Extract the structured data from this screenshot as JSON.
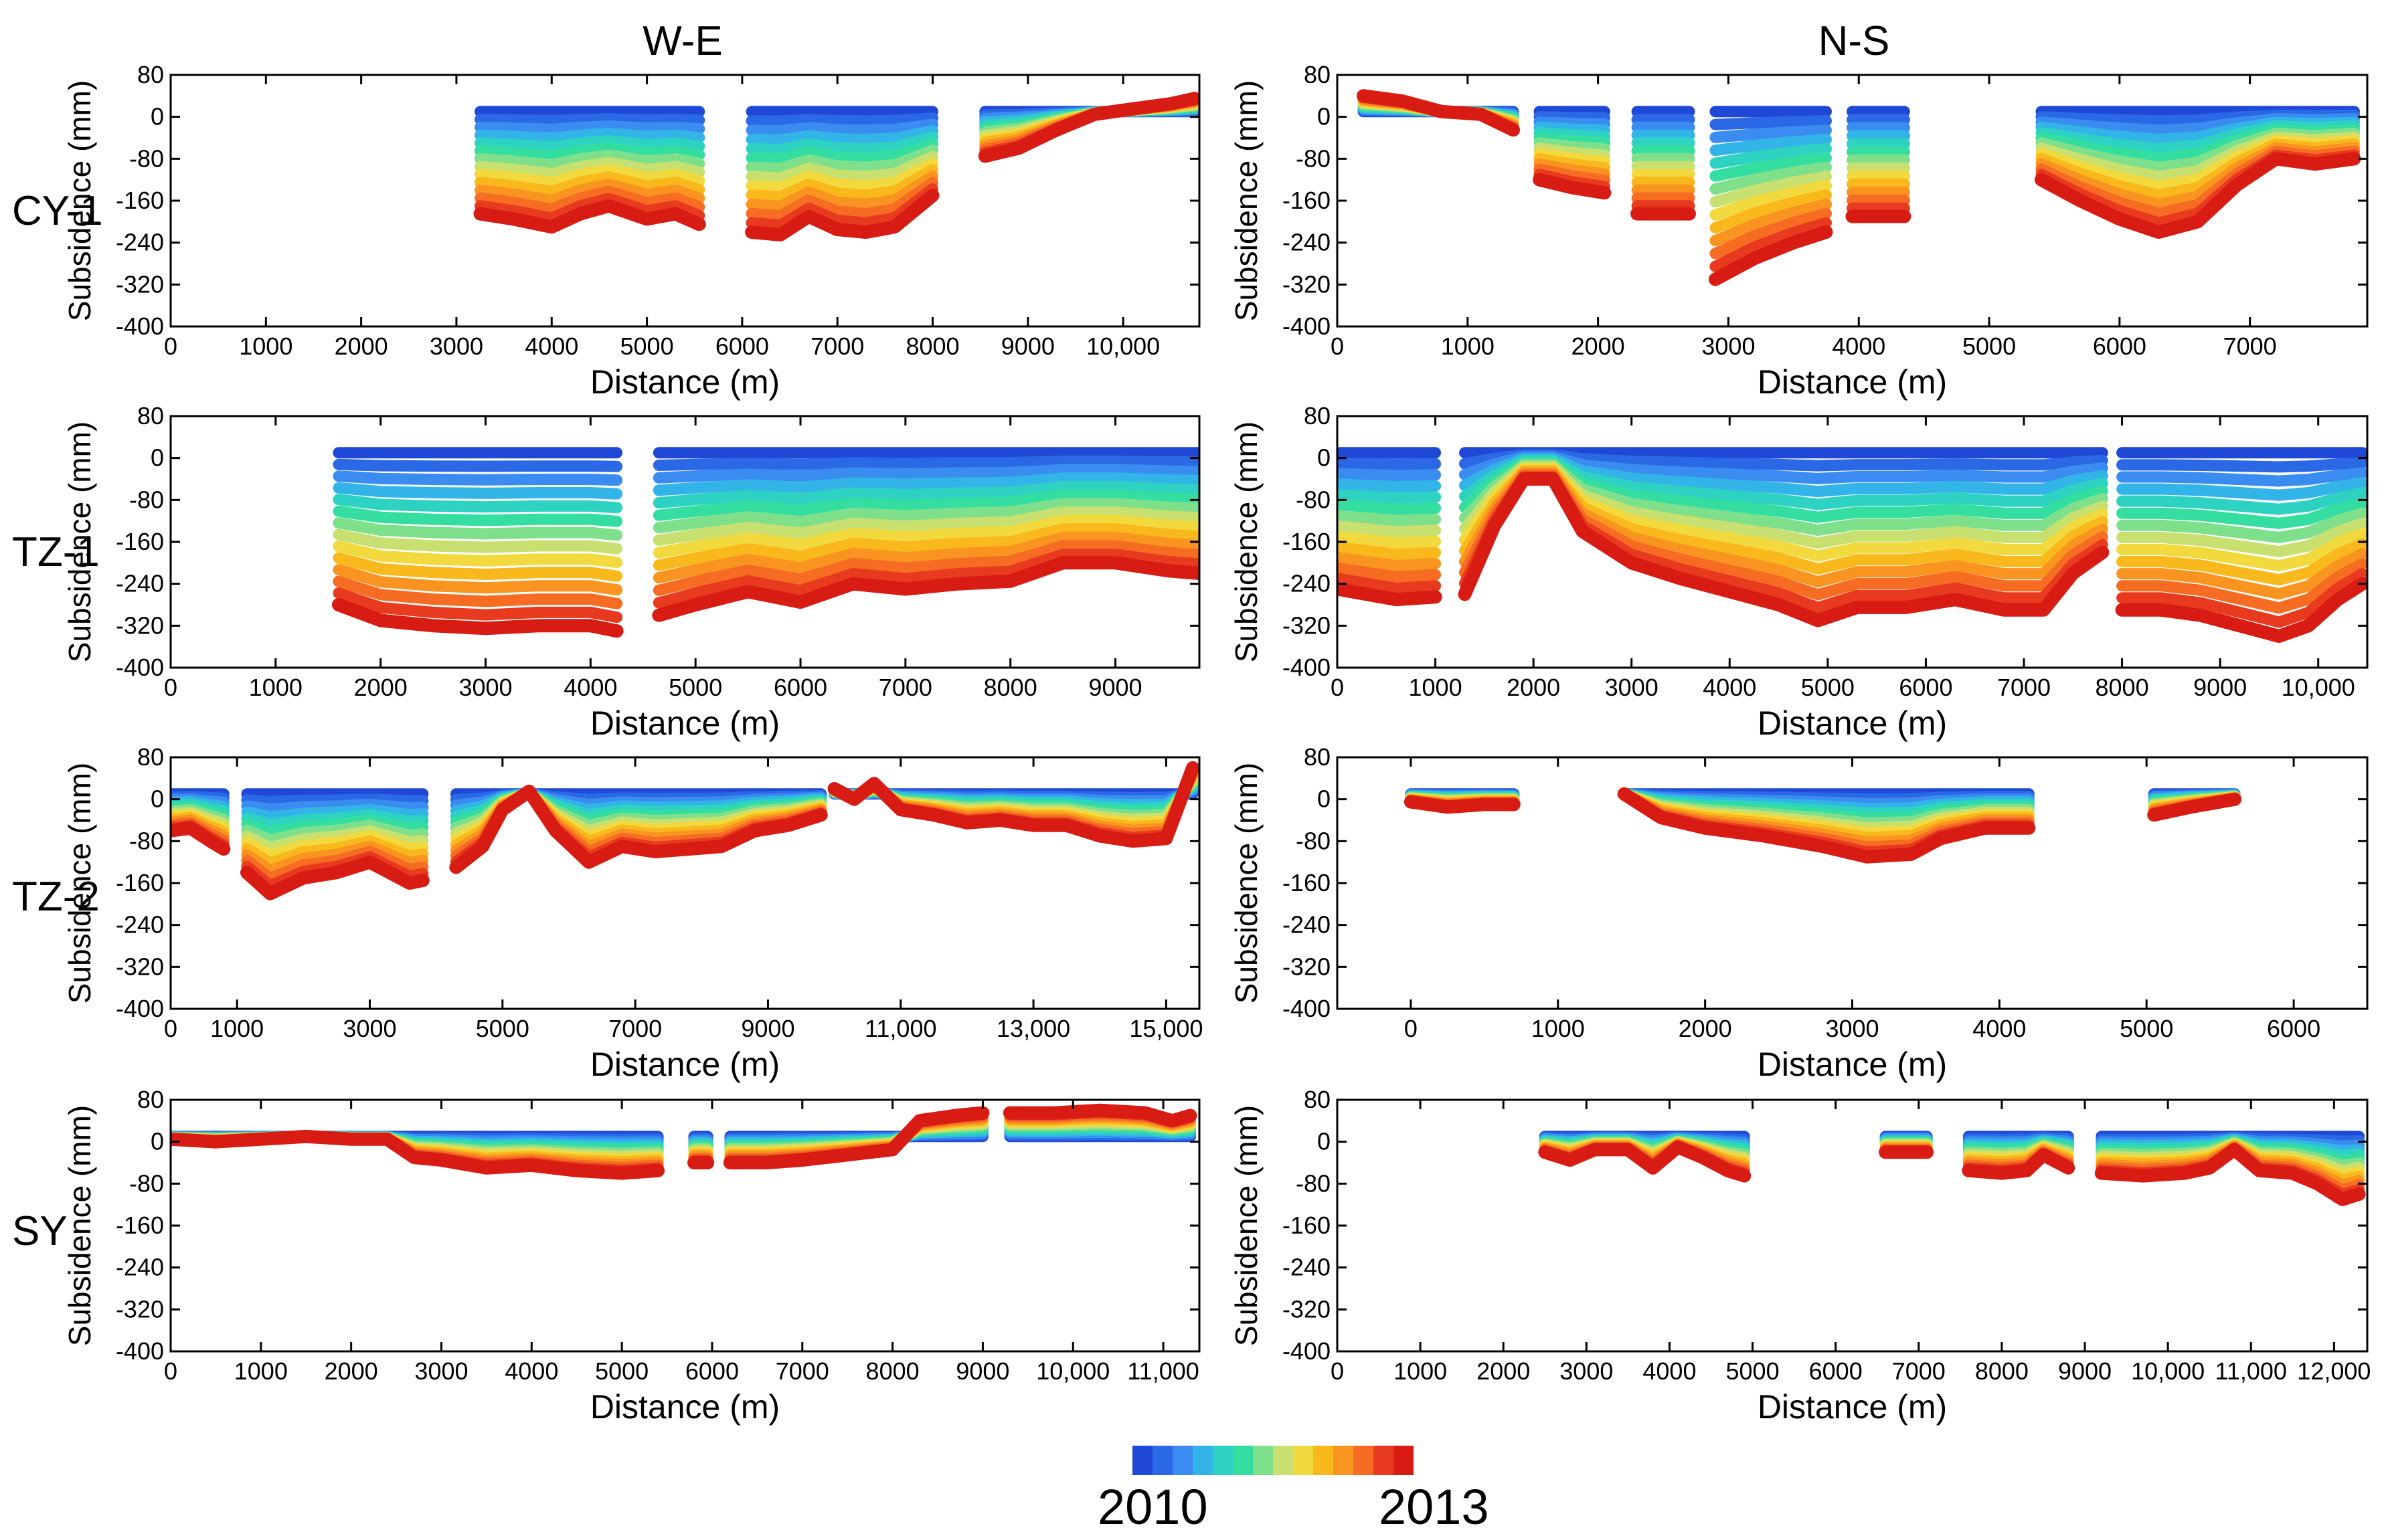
{
  "figure": {
    "column_titles": [
      "W-E",
      "N-S"
    ],
    "row_labels": [
      "CY-1",
      "TZ-1",
      "TZ-2",
      "SY"
    ],
    "colorbar": {
      "start_label": "2010",
      "end_label": "2013",
      "colors": [
        "#1f48d6",
        "#2a68e6",
        "#3a8cf0",
        "#32b4e8",
        "#2ed2c2",
        "#34dea0",
        "#7ee08a",
        "#c8e070",
        "#f2d93e",
        "#f9b81c",
        "#f99421",
        "#f56c22",
        "#e83a1e",
        "#d81c14"
      ]
    }
  },
  "chart_data": [
    {
      "id": "CY-1_W-E",
      "type": "line",
      "row": "CY-1",
      "direction": "W-E",
      "xlabel": "Distance (m)",
      "ylabel": "Subsidence (mm)",
      "xlim": [
        0,
        10800
      ],
      "ylim": [
        -400,
        80
      ],
      "xticks": [
        0,
        1000,
        2000,
        3000,
        4000,
        5000,
        6000,
        7000,
        8000,
        9000,
        10000
      ],
      "xtick_labels": [
        "0",
        "1000",
        "2000",
        "3000",
        "4000",
        "5000",
        "6000",
        "7000",
        "8000",
        "9000",
        "10,000"
      ],
      "yticks": [
        80,
        0,
        -80,
        -160,
        -240,
        -320,
        -400
      ],
      "ytick_labels": [
        "80",
        "0",
        "-80",
        "-160",
        "-240",
        "-320",
        "-400"
      ],
      "segments": [
        {
          "x": [
            3250,
            3600,
            4000,
            4300,
            4600,
            5000,
            5300,
            5550
          ],
          "final": [
            -185,
            -195,
            -210,
            -185,
            -170,
            -195,
            -185,
            -205
          ]
        },
        {
          "x": [
            6100,
            6400,
            6700,
            7000,
            7300,
            7600,
            8000
          ],
          "final": [
            -220,
            -225,
            -190,
            -215,
            -220,
            -210,
            -150
          ]
        },
        {
          "x": [
            8550,
            8900,
            9300,
            9700,
            10100,
            10500,
            10750
          ],
          "final": [
            -75,
            -60,
            -25,
            5,
            15,
            25,
            35
          ]
        }
      ]
    },
    {
      "id": "CY-1_N-S",
      "type": "line",
      "row": "CY-1",
      "direction": "N-S",
      "xlabel": "Distance (m)",
      "ylabel": "Subsidence (mm)",
      "xlim": [
        0,
        7900
      ],
      "ylim": [
        -400,
        80
      ],
      "xticks": [
        0,
        1000,
        2000,
        3000,
        4000,
        5000,
        6000,
        7000
      ],
      "xtick_labels": [
        "0",
        "1000",
        "2000",
        "3000",
        "4000",
        "5000",
        "6000",
        "7000"
      ],
      "yticks": [
        80,
        0,
        -80,
        -160,
        -240,
        -320,
        -400
      ],
      "ytick_labels": [
        "80",
        "0",
        "-80",
        "-160",
        "-240",
        "-320",
        "-400"
      ],
      "segments": [
        {
          "x": [
            200,
            500,
            800,
            1100,
            1350
          ],
          "final": [
            40,
            30,
            10,
            5,
            -25
          ]
        },
        {
          "x": [
            1550,
            1800,
            2050
          ],
          "final": [
            -120,
            -135,
            -145
          ]
        },
        {
          "x": [
            2300,
            2500,
            2700
          ],
          "final": [
            -185,
            -185,
            -185
          ]
        },
        {
          "x": [
            2900,
            3200,
            3500,
            3750
          ],
          "final": [
            -310,
            -270,
            -240,
            -220
          ]
        },
        {
          "x": [
            3950,
            4150,
            4350
          ],
          "final": [
            -190,
            -190,
            -190
          ]
        },
        {
          "x": [
            5400,
            5700,
            6000,
            6300,
            6600,
            6900,
            7200,
            7500,
            7800
          ],
          "final": [
            -120,
            -160,
            -195,
            -220,
            -200,
            -130,
            -80,
            -90,
            -80
          ]
        }
      ]
    },
    {
      "id": "TZ-1_W-E",
      "type": "line",
      "row": "TZ-1",
      "direction": "W-E",
      "xlabel": "Distance (m)",
      "ylabel": "Subsidence (mm)",
      "xlim": [
        0,
        9800
      ],
      "ylim": [
        -400,
        80
      ],
      "xticks": [
        0,
        1000,
        2000,
        3000,
        4000,
        5000,
        6000,
        7000,
        8000,
        9000
      ],
      "xtick_labels": [
        "0",
        "1000",
        "2000",
        "3000",
        "4000",
        "5000",
        "6000",
        "7000",
        "8000",
        "9000"
      ],
      "yticks": [
        80,
        0,
        -80,
        -160,
        -240,
        -320,
        -400
      ],
      "ytick_labels": [
        "80",
        "0",
        "-80",
        "-160",
        "-240",
        "-320",
        "-400"
      ],
      "segments": [
        {
          "x": [
            1600,
            2000,
            2500,
            3000,
            3500,
            4000,
            4250
          ],
          "final": [
            -280,
            -310,
            -320,
            -325,
            -320,
            -320,
            -330
          ]
        },
        {
          "x": [
            4650,
            5000,
            5500,
            6000,
            6500,
            7000,
            7500,
            8000,
            8500,
            9000,
            9500,
            9800
          ],
          "final": [
            -300,
            -280,
            -255,
            -275,
            -240,
            -250,
            -240,
            -235,
            -200,
            -200,
            -215,
            -220
          ]
        }
      ]
    },
    {
      "id": "TZ-1_N-S",
      "type": "line",
      "row": "TZ-1",
      "direction": "N-S",
      "xlabel": "Distance (m)",
      "ylabel": "Subsidence (mm)",
      "xlim": [
        0,
        10500
      ],
      "ylim": [
        -400,
        80
      ],
      "xticks": [
        0,
        1000,
        2000,
        3000,
        4000,
        5000,
        6000,
        7000,
        8000,
        9000,
        10000
      ],
      "xtick_labels": [
        "0",
        "1000",
        "2000",
        "3000",
        "4000",
        "5000",
        "6000",
        "7000",
        "8000",
        "9000",
        "10,000"
      ],
      "segments": [
        {
          "x": [
            0,
            300,
            600,
            1000
          ],
          "final": [
            -250,
            -260,
            -270,
            -265
          ]
        },
        {
          "x": [
            1300,
            1600,
            1900,
            2200,
            2500,
            3000,
            3500,
            4000,
            4500,
            4900,
            5300,
            5800,
            6300,
            6800,
            7200,
            7500,
            7800
          ],
          "final": [
            -260,
            -130,
            -40,
            -40,
            -140,
            -200,
            -230,
            -255,
            -280,
            -310,
            -285,
            -285,
            -270,
            -290,
            -290,
            -220,
            -180
          ]
        },
        {
          "x": [
            8000,
            8400,
            8800,
            9200,
            9600,
            9900,
            10200,
            10450
          ],
          "final": [
            -290,
            -290,
            -300,
            -320,
            -340,
            -320,
            -270,
            -240
          ]
        }
      ],
      "yticks": [
        80,
        0,
        -80,
        -160,
        -240,
        -320,
        -400
      ],
      "ytick_labels": [
        "80",
        "0",
        "-80",
        "-160",
        "-240",
        "-320",
        "-400"
      ]
    },
    {
      "id": "TZ-2_W-E",
      "type": "line",
      "row": "TZ-2",
      "direction": "W-E",
      "xlabel": "Distance (m)",
      "ylabel": "Subsidence (mm)",
      "xlim": [
        0,
        15500
      ],
      "ylim": [
        -400,
        80
      ],
      "xticks": [
        0,
        1000,
        3000,
        5000,
        7000,
        9000,
        11000,
        13000,
        15000
      ],
      "xtick_labels": [
        "0",
        "1000",
        "3000",
        "5000",
        "7000",
        "9000",
        "11,000",
        "13,000",
        "15,000"
      ],
      "yticks": [
        80,
        0,
        -80,
        -160,
        -240,
        -320,
        -400
      ],
      "ytick_labels": [
        "80",
        "0",
        "-80",
        "-160",
        "-240",
        "-320",
        "-400"
      ],
      "segments": [
        {
          "x": [
            0,
            300,
            600,
            800
          ],
          "final": [
            -60,
            -55,
            -80,
            -95
          ]
        },
        {
          "x": [
            1150,
            1500,
            2000,
            2500,
            3000,
            3300,
            3600,
            3800
          ],
          "final": [
            -140,
            -180,
            -150,
            -140,
            -120,
            -140,
            -160,
            -155
          ]
        },
        {
          "x": [
            4300,
            4700,
            5000,
            5400,
            5800,
            6300,
            6800,
            7300,
            7800,
            8300,
            8800,
            9300,
            9800
          ],
          "final": [
            -130,
            -90,
            -20,
            15,
            -60,
            -120,
            -90,
            -100,
            -95,
            -90,
            -60,
            -50,
            -30
          ]
        },
        {
          "x": [
            10000,
            10300,
            10600,
            11000,
            11500,
            12000,
            12500,
            13000,
            13500,
            14000,
            14500,
            15000,
            15400
          ],
          "final": [
            20,
            0,
            30,
            -20,
            -30,
            -45,
            -40,
            -50,
            -50,
            -70,
            -80,
            -75,
            60
          ]
        }
      ]
    },
    {
      "id": "TZ-2_N-S",
      "type": "line",
      "row": "TZ-2",
      "direction": "N-S",
      "xlabel": "Distance (m)",
      "ylabel": "Subsidence (mm)",
      "xlim": [
        -500,
        6500
      ],
      "ylim": [
        -400,
        80
      ],
      "xticks": [
        0,
        1000,
        2000,
        3000,
        4000,
        5000,
        6000
      ],
      "xtick_labels": [
        "0",
        "1000",
        "2000",
        "3000",
        "4000",
        "5000",
        "6000"
      ],
      "yticks": [
        80,
        0,
        -80,
        -160,
        -240,
        -320,
        -400
      ],
      "ytick_labels": [
        "80",
        "0",
        "-80",
        "-160",
        "-240",
        "-320",
        "-400"
      ],
      "segments": [
        {
          "x": [
            0,
            250,
            500,
            700
          ],
          "final": [
            -5,
            -15,
            -10,
            -10
          ]
        },
        {
          "x": [
            1450,
            1700,
            2000,
            2400,
            2800,
            3100,
            3400,
            3600,
            3900,
            4200
          ],
          "final": [
            10,
            -35,
            -55,
            -70,
            -90,
            -110,
            -105,
            -75,
            -55,
            -55
          ]
        },
        {
          "x": [
            5050,
            5300,
            5600
          ],
          "final": [
            -30,
            -15,
            0
          ]
        }
      ]
    },
    {
      "id": "SY_W-E",
      "type": "line",
      "row": "SY",
      "direction": "W-E",
      "xlabel": "Distance (m)",
      "ylabel": "Subsidence (mm)",
      "xlim": [
        0,
        11400
      ],
      "ylim": [
        -400,
        80
      ],
      "xticks": [
        0,
        1000,
        2000,
        3000,
        4000,
        5000,
        6000,
        7000,
        8000,
        9000,
        10000,
        11000
      ],
      "xtick_labels": [
        "0",
        "1000",
        "2000",
        "3000",
        "4000",
        "5000",
        "6000",
        "7000",
        "8000",
        "9000",
        "10,000",
        "11,000"
      ],
      "yticks": [
        80,
        0,
        -80,
        -160,
        -240,
        -320,
        -400
      ],
      "ytick_labels": [
        "80",
        "0",
        "-80",
        "-160",
        "-240",
        "-320",
        "-400"
      ],
      "segments": [
        {
          "x": [
            0,
            500,
            1000,
            1500,
            2000,
            2400,
            2700,
            3000,
            3500,
            4000,
            4500,
            5000,
            5400
          ],
          "final": [
            5,
            0,
            5,
            10,
            5,
            5,
            -30,
            -35,
            -50,
            -45,
            -55,
            -60,
            -55
          ]
        },
        {
          "x": [
            5800,
            5950
          ],
          "final": [
            -40,
            -40
          ]
        },
        {
          "x": [
            6200,
            6600,
            7000,
            7500,
            8000,
            8300,
            8700,
            9000
          ],
          "final": [
            -40,
            -40,
            -35,
            -25,
            -15,
            40,
            50,
            55
          ]
        },
        {
          "x": [
            9300,
            9800,
            10300,
            10800,
            11100,
            11300
          ],
          "final": [
            55,
            55,
            60,
            55,
            40,
            50
          ]
        }
      ]
    },
    {
      "id": "SY_N-S",
      "type": "line",
      "row": "SY",
      "direction": "N-S",
      "xlabel": "Distance (m)",
      "ylabel": "Subsidence (mm)",
      "xlim": [
        0,
        12400
      ],
      "ylim": [
        -400,
        80
      ],
      "xticks": [
        0,
        1000,
        2000,
        3000,
        4000,
        5000,
        6000,
        7000,
        8000,
        9000,
        10000,
        11000,
        12000
      ],
      "xtick_labels": [
        "0",
        "1000",
        "2000",
        "3000",
        "4000",
        "5000",
        "6000",
        "7000",
        "8000",
        "9000",
        "10,000",
        "11,000",
        "12,000"
      ],
      "yticks": [
        80,
        0,
        -80,
        -160,
        -240,
        -320,
        -400
      ],
      "ytick_labels": [
        "80",
        "0",
        "-80",
        "-160",
        "-240",
        "-320",
        "-400"
      ],
      "segments": [
        {
          "x": [
            2500,
            2800,
            3100,
            3500,
            3800,
            4100,
            4400,
            4700,
            4900
          ],
          "final": [
            -20,
            -35,
            -15,
            -15,
            -50,
            -10,
            -30,
            -55,
            -65
          ]
        },
        {
          "x": [
            6600,
            7100
          ],
          "final": [
            -20,
            -20
          ]
        },
        {
          "x": [
            7600,
            8000,
            8300,
            8500,
            8800
          ],
          "final": [
            -55,
            -60,
            -55,
            -25,
            -50
          ]
        },
        {
          "x": [
            9200,
            9700,
            10200,
            10500,
            10800,
            11100,
            11500,
            11800,
            12100,
            12300
          ],
          "final": [
            -60,
            -65,
            -60,
            -50,
            -15,
            -55,
            -60,
            -80,
            -110,
            -100
          ]
        }
      ]
    }
  ]
}
